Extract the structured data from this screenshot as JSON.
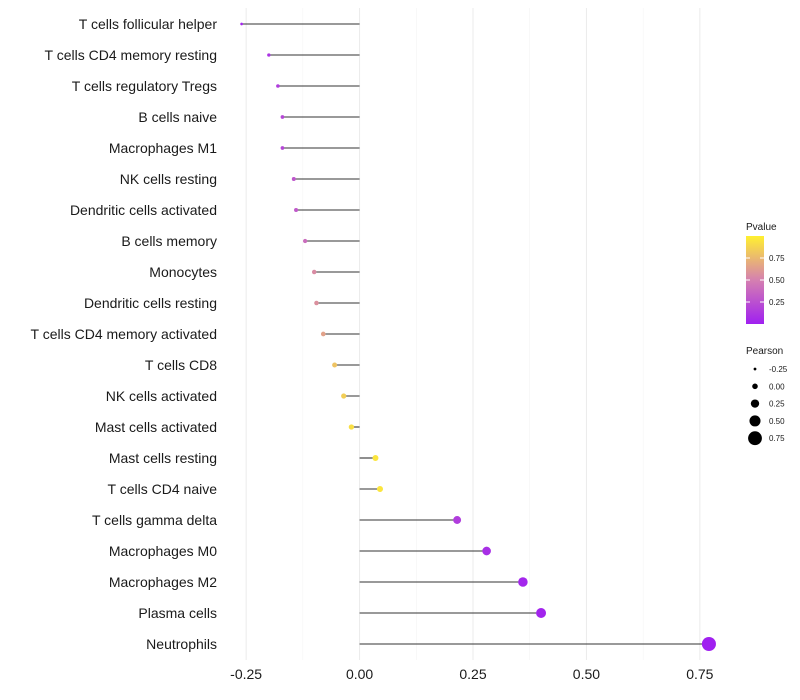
{
  "chart_data": {
    "type": "lollipop",
    "title": "",
    "xlabel": "",
    "ylabel": "",
    "xlim": [
      -0.29,
      0.79
    ],
    "x_ticks": [
      -0.25,
      0.0,
      0.25,
      0.5,
      0.75
    ],
    "x_tick_labels": [
      "-0.25",
      "0.00",
      "0.25",
      "0.50",
      "0.75"
    ],
    "grid": "vertical",
    "baseline": 0,
    "categories": [
      "T cells follicular helper",
      "T cells CD4 memory resting",
      "T cells regulatory  Tregs",
      "B cells naive",
      "Macrophages M1",
      "NK cells resting",
      "Dendritic cells activated",
      "B cells memory",
      "Monocytes",
      "Dendritic cells resting",
      "T cells CD4 memory activated",
      "T cells CD8",
      "NK cells activated",
      "Mast cells activated",
      "Mast cells resting",
      "T cells CD4 naive",
      "T cells gamma delta",
      "Macrophages M0",
      "Macrophages M2",
      "Plasma cells",
      "Neutrophils"
    ],
    "pearson": [
      -0.26,
      -0.2,
      -0.18,
      -0.17,
      -0.17,
      -0.145,
      -0.14,
      -0.12,
      -0.1,
      -0.095,
      -0.08,
      -0.055,
      -0.035,
      -0.018,
      0.035,
      0.045,
      0.215,
      0.28,
      0.36,
      0.4,
      0.77
    ],
    "pvalue": [
      0.03,
      0.1,
      0.15,
      0.2,
      0.2,
      0.28,
      0.3,
      0.4,
      0.55,
      0.57,
      0.65,
      0.8,
      0.85,
      0.92,
      0.95,
      0.95,
      0.15,
      0.08,
      0.03,
      0.02,
      0.002
    ],
    "color_legend": {
      "title": "Pvalue",
      "ticks": [
        0.75,
        0.5,
        0.25
      ],
      "tick_labels": [
        "0.75",
        "0.50",
        "0.25"
      ],
      "range": [
        0,
        1
      ],
      "low_color": "#a020f0",
      "mid_color": "#d580b0",
      "high_color": "#fff030"
    },
    "size_legend": {
      "title": "Pearson",
      "values": [
        -0.25,
        0.0,
        0.25,
        0.5,
        0.75
      ],
      "labels": [
        "-0.25",
        "0.00",
        "0.25",
        "0.50",
        "0.75"
      ]
    },
    "colors": {
      "stem": "#333333",
      "grid": "#ebebeb"
    }
  }
}
